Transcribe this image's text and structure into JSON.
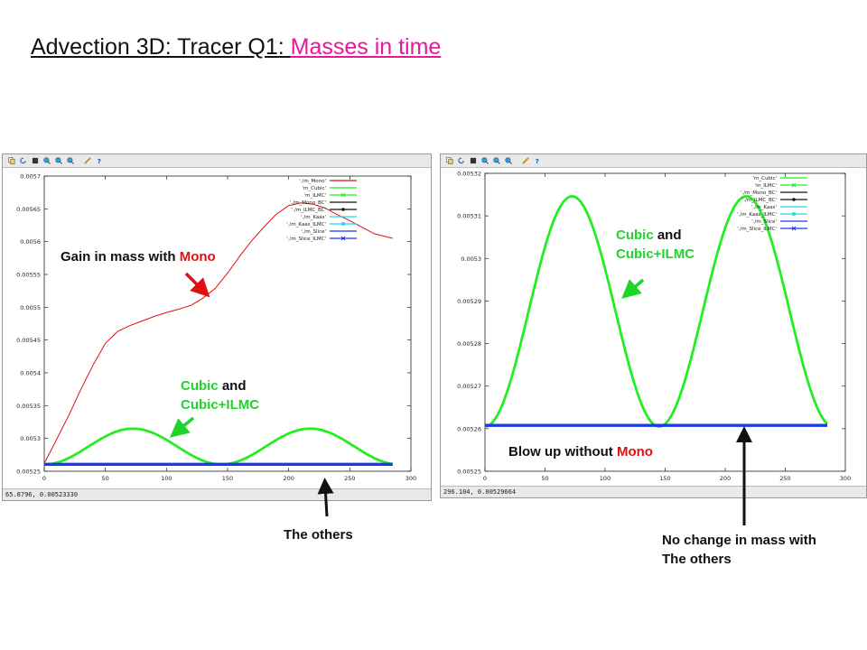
{
  "title": {
    "prefix": "Advection 3D: Tracer Q1: ",
    "highlight": "Masses in time"
  },
  "colors": {
    "title_highlight": "#e8179f",
    "mono_red": "#e01010",
    "cubic_green": "#22ee22",
    "others_blue": "#1a3be6",
    "annotation_green": "#1fd42b"
  },
  "toolbar_icons": [
    "copy-icon",
    "refresh-icon",
    "grid-icon",
    "zoom-in-icon",
    "zoom-out-icon",
    "zoom-reset-icon",
    "pencil-icon",
    "help-icon"
  ],
  "left_window": {
    "status": "65.8796,  0.00523330"
  },
  "right_window": {
    "status": "296.104,  0.00529664"
  },
  "annotations": {
    "gain_prefix": "Gain in mass with ",
    "gain_mono": "Mono",
    "left_cubic": "Cubic",
    "left_and": " and",
    "left_cubic_ilmc": "Cubic+ILMC",
    "others": "The others",
    "right_cubic": "Cubic",
    "right_and": " and",
    "right_cubic_ilmc": "Cubic+ILMC",
    "blow_prefix": "Blow up without ",
    "blow_mono": "Mono",
    "nochange_line1": "No change in mass with",
    "nochange_line2": "The others"
  },
  "chart_data": [
    {
      "type": "line",
      "xlim": [
        0,
        300
      ],
      "ylim": [
        0.00525,
        0.0057
      ],
      "xticks": [
        "0",
        "50",
        "100",
        "150",
        "200",
        "250",
        "300"
      ],
      "yticks": [
        "0.00525",
        "0.0053",
        "0.00535",
        "0.0054",
        "0.00545",
        "0.0055",
        "0.00555",
        "0.0056",
        "0.00565",
        "0.0057"
      ],
      "legend": [
        "'./m_Mono'",
        "'m_Cubic'",
        "'m_ILMC'",
        "'./m_Mono_BC'",
        "'./m_ILMC_BC'",
        "'./m_Kaas'",
        "'./m_Kaas_ILMC'",
        "'./m_Slice'",
        "'./m_Slice_ILMC'"
      ],
      "legend_position": "top-right",
      "grid": false,
      "series": [
        {
          "name": "'./m_Mono'",
          "color": "#e01010",
          "x": [
            0,
            10,
            20,
            30,
            40,
            50,
            60,
            70,
            80,
            90,
            100,
            110,
            120,
            130,
            140,
            150,
            160,
            170,
            180,
            190,
            200,
            210,
            220,
            230,
            240,
            250,
            260,
            270,
            285
          ],
          "y": [
            0.005262,
            0.005298,
            0.005335,
            0.005375,
            0.005412,
            0.005445,
            0.005463,
            0.005472,
            0.005479,
            0.005486,
            0.005492,
            0.005497,
            0.005503,
            0.005514,
            0.005529,
            0.005552,
            0.005578,
            0.005602,
            0.005623,
            0.005642,
            0.005655,
            0.005659,
            0.005657,
            0.005651,
            0.005641,
            0.005632,
            0.005622,
            0.005612,
            0.005605
          ]
        },
        {
          "name": "'m_Cubic'",
          "color": "#22ee22",
          "period": 145,
          "amplitude": 5.45e-05,
          "base": 0.0052605,
          "x_end": 285
        },
        {
          "name": "'m_ILMC'",
          "color": "#22ee22",
          "period": 145,
          "amplitude": 5.45e-05,
          "base": 0.0052605,
          "x_end": 285
        },
        {
          "name": "'./m_Slice'",
          "color": "#1a3be6",
          "constant": 0.0052605,
          "x_end": 285
        },
        {
          "name": "'./m_Slice_ILMC'",
          "color": "#1a3be6",
          "constant": 0.0052605,
          "x_end": 285
        }
      ]
    },
    {
      "type": "line",
      "xlim": [
        0,
        300
      ],
      "ylim": [
        0.00525,
        0.00532
      ],
      "xticks": [
        "0",
        "50",
        "100",
        "150",
        "200",
        "250",
        "300"
      ],
      "yticks": [
        "0.00525",
        "0.00526",
        "0.00527",
        "0.00528",
        "0.00529",
        "0.0053",
        "0.00531",
        "0.00532"
      ],
      "legend": [
        "'m_Cubic'",
        "'m_ILMC'",
        "'./m_Mono_BC'",
        "'./m_ILMC_BC'",
        "'./m_Kaas'",
        "'./m_Kaas_ILMC'",
        "'./m_Slice'",
        "'./m_Slice_ILMC'"
      ],
      "legend_position": "top-right",
      "grid": false,
      "series": [
        {
          "name": "'m_Cubic'",
          "color": "#22ee22",
          "period": 145,
          "amplitude": 5.41e-05,
          "base": 0.0052605,
          "x_end": 285
        },
        {
          "name": "'m_ILMC'",
          "color": "#22ee22",
          "period": 145,
          "amplitude": 5.41e-05,
          "base": 0.0052605,
          "x_end": 285
        },
        {
          "name": "'./m_Slice'",
          "color": "#1a3be6",
          "constant": 0.0052608,
          "x_end": 285
        },
        {
          "name": "'./m_Slice_ILMC'",
          "color": "#1a3be6",
          "constant": 0.0052608,
          "x_end": 285
        }
      ]
    }
  ]
}
